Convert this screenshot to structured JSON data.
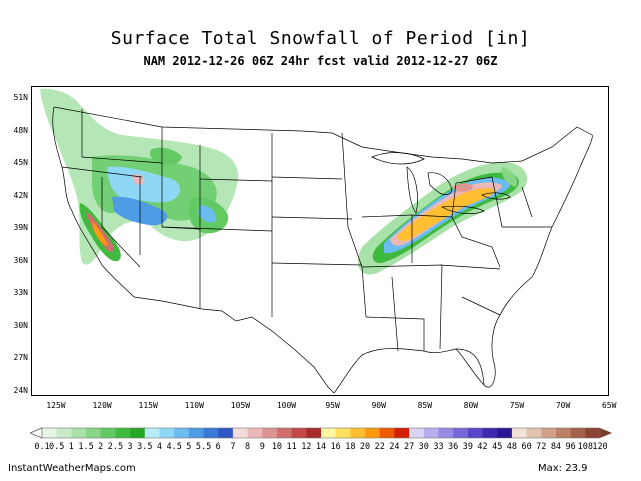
{
  "title": "Surface Total Snowfall of Period [in]",
  "subtitle": "NAM 2012-12-26 06Z 24hr fcst valid 2012-12-27 06Z",
  "lat_labels": [
    "51N",
    "48N",
    "45N",
    "42N",
    "39N",
    "36N",
    "33N",
    "30N",
    "27N",
    "24N"
  ],
  "lon_labels": [
    "125W",
    "120W",
    "115W",
    "110W",
    "105W",
    "100W",
    "95W",
    "90W",
    "85W",
    "80W",
    "75W",
    "70W",
    "65W"
  ],
  "colorbar": {
    "labels": [
      "0.1",
      "0.5",
      "1",
      "1.5",
      "2",
      "2.5",
      "3",
      "3.5",
      "4",
      "4.5",
      "5",
      "5.5",
      "6",
      "7",
      "8",
      "9",
      "10",
      "11",
      "12",
      "14",
      "16",
      "18",
      "20",
      "22",
      "24",
      "27",
      "30",
      "33",
      "36",
      "39",
      "42",
      "45",
      "48",
      "60",
      "72",
      "84",
      "96",
      "108",
      "120"
    ],
    "colors": [
      "#e5f5e5",
      "#c7ecc7",
      "#a8e2a8",
      "#86d686",
      "#63c963",
      "#3fba3f",
      "#22a822",
      "#b8ecf7",
      "#8fd8f5",
      "#6bbcf0",
      "#4e9be6",
      "#3a78d6",
      "#2d57c2",
      "#f3dcdc",
      "#eab8b8",
      "#df9494",
      "#d06e6e",
      "#c04848",
      "#a82a2a",
      "#fff8a0",
      "#ffe060",
      "#ffbf30",
      "#ff9a10",
      "#ef5a00",
      "#d41e00",
      "#d9d4f5",
      "#b8b0ee",
      "#968be4",
      "#7668d8",
      "#5746c8",
      "#3d28b2",
      "#2a1496",
      "#f3e2d8",
      "#e3c2b0",
      "#d0a088",
      "#bb8066",
      "#a46048",
      "#8c4230"
    ]
  },
  "site_credit": "InstantWeatherMaps.com",
  "max_readout": "Max:  23.9"
}
